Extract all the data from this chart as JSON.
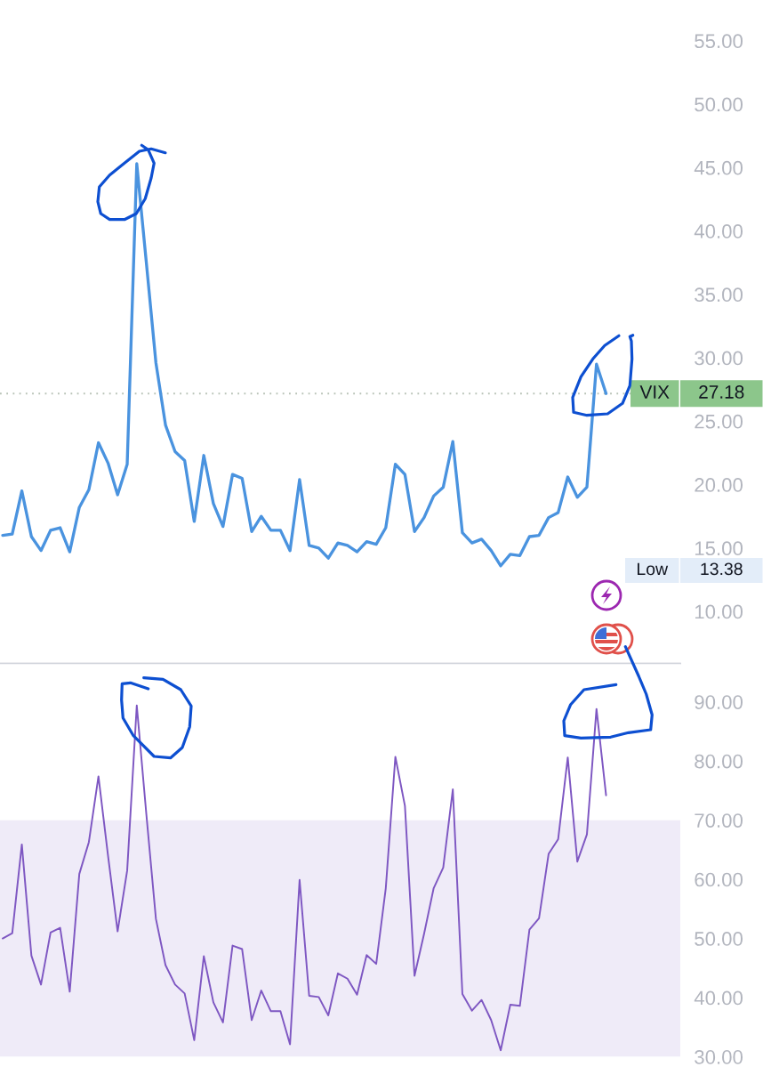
{
  "chart_data": [
    {
      "type": "line",
      "categories": [
        null,
        null,
        null,
        null,
        null,
        null,
        null,
        null,
        null,
        null,
        null,
        null,
        null,
        null,
        null,
        null,
        null,
        null,
        null,
        null,
        null,
        null,
        null,
        null,
        null,
        null,
        null,
        null,
        null,
        null,
        null,
        null,
        null,
        null,
        null,
        null,
        null,
        null,
        null,
        null,
        null,
        null,
        null,
        null,
        null,
        null,
        null,
        null,
        null,
        null,
        null,
        null,
        null,
        null,
        null,
        null,
        null,
        null,
        null,
        null,
        null,
        null,
        null,
        null
      ],
      "series": [
        {
          "color": "#4a93df",
          "values": [
            16.0,
            16.1,
            19.5,
            15.9,
            14.8,
            16.4,
            16.6,
            14.7,
            18.2,
            19.6,
            23.3,
            21.7,
            19.2,
            21.6,
            45.3,
            37.5,
            29.6,
            24.7,
            22.6,
            21.9,
            17.1,
            22.3,
            18.5,
            16.7,
            20.8,
            20.5,
            16.3,
            17.5,
            16.4,
            16.4,
            14.8,
            20.4,
            15.2,
            15.0,
            14.2,
            15.4,
            15.2,
            14.7,
            15.5,
            15.3,
            16.6,
            21.6,
            20.8,
            16.3,
            17.4,
            19.1,
            19.8,
            23.4,
            16.2,
            15.4,
            15.7,
            14.8,
            13.6,
            14.5,
            14.4,
            15.9,
            16.0,
            17.4,
            17.8,
            20.6,
            19.0,
            19.8,
            29.5,
            27.18
          ]
        }
      ],
      "ylim": [
        5.9,
        55
      ],
      "yticks": [
        {
          "value": 10,
          "label": "10.00"
        },
        {
          "value": 15,
          "label": "15.00"
        },
        {
          "value": 20,
          "label": "20.00"
        },
        {
          "value": 25,
          "label": "25.00"
        },
        {
          "value": 30,
          "label": "30.00"
        },
        {
          "value": 35,
          "label": "35.00"
        },
        {
          "value": 40,
          "label": "40.00"
        },
        {
          "value": 45,
          "label": "45.00"
        },
        {
          "value": 50,
          "label": "50.00"
        },
        {
          "value": 55,
          "label": "55.00"
        }
      ],
      "ref_lines": [
        {
          "axis": "y",
          "value": 27.18,
          "label": "VIX 27.18",
          "line_style": "dotted",
          "color": "#b8c2b6"
        }
      ],
      "annotations": [
        "Low 13.38"
      ],
      "tick_labels": "y"
    },
    {
      "type": "line",
      "categories": [
        null,
        null,
        null,
        null,
        null,
        null,
        null,
        null,
        null,
        null,
        null,
        null,
        null,
        null,
        null,
        null,
        null,
        null,
        null,
        null,
        null,
        null,
        null,
        null,
        null,
        null,
        null,
        null,
        null,
        null,
        null,
        null,
        null,
        null,
        null,
        null,
        null,
        null,
        null,
        null,
        null,
        null,
        null,
        null,
        null,
        null,
        null,
        null,
        null,
        null,
        null,
        null,
        null,
        null,
        null,
        null,
        null,
        null,
        null,
        null,
        null,
        null,
        null,
        null
      ],
      "series": [
        {
          "color": "#7e57c2",
          "values": [
            50.0,
            50.9,
            65.9,
            47.1,
            42.2,
            51.0,
            51.8,
            41.0,
            60.9,
            66.3,
            77.4,
            64.0,
            51.2,
            61.5,
            89.4,
            71.0,
            53.3,
            45.5,
            42.2,
            40.7,
            32.8,
            47.0,
            39.2,
            35.8,
            48.8,
            48.2,
            36.2,
            41.2,
            37.7,
            37.7,
            32.1,
            59.9,
            40.3,
            40.1,
            37.0,
            44.1,
            43.2,
            40.5,
            47.2,
            45.7,
            58.5,
            80.7,
            72.4,
            43.7,
            50.8,
            58.5,
            62.0,
            75.2,
            40.6,
            37.8,
            39.6,
            36.2,
            31.1,
            38.8,
            38.6,
            51.5,
            53.4,
            64.3,
            66.8,
            80.6,
            63.0,
            67.6,
            88.8,
            74.2
          ]
        }
      ],
      "ylim": [
        30,
        96.5
      ],
      "yticks": [
        {
          "value": 30,
          "label": "30.00"
        },
        {
          "value": 40,
          "label": "40.00"
        },
        {
          "value": 50,
          "label": "50.00"
        },
        {
          "value": 60,
          "label": "60.00"
        },
        {
          "value": 70,
          "label": "70.00"
        },
        {
          "value": 80,
          "label": "80.00"
        },
        {
          "value": 90,
          "label": "90.00"
        }
      ],
      "bands": [
        {
          "axis": "y",
          "from": 30,
          "to": 70,
          "color": "#efebf8"
        }
      ],
      "tick_labels": "y"
    }
  ]
}
